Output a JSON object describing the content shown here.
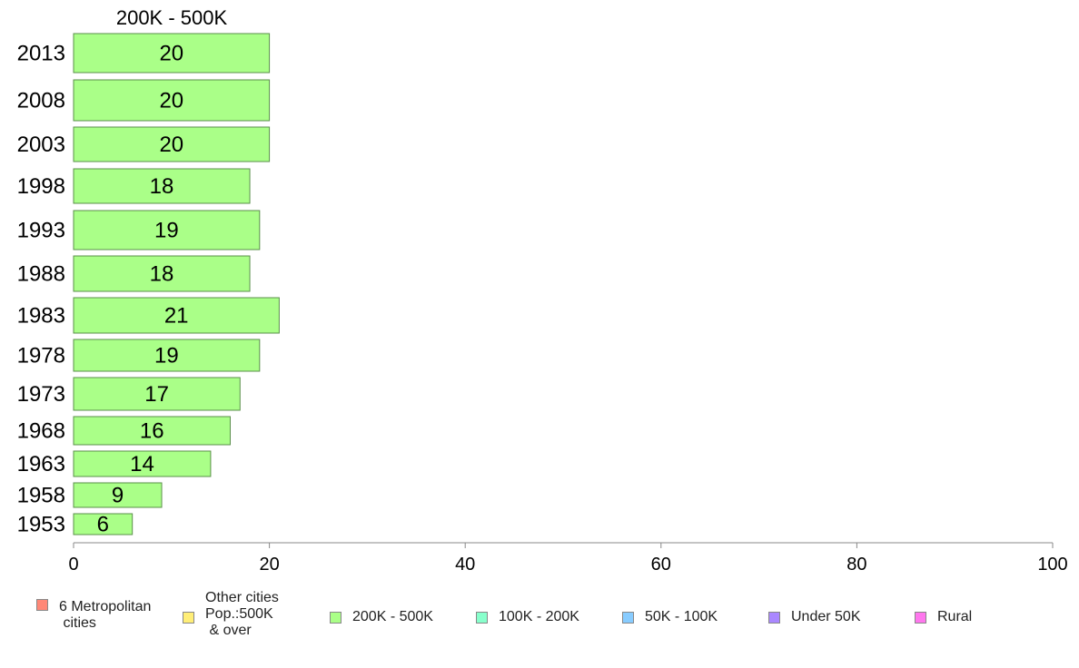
{
  "chart_data": {
    "type": "bar",
    "orientation": "horizontal",
    "title": "200K - 500K",
    "categories": [
      "2013",
      "2008",
      "2003",
      "1998",
      "1993",
      "1988",
      "1983",
      "1978",
      "1973",
      "1968",
      "1963",
      "1958",
      "1953"
    ],
    "values": [
      20,
      20,
      20,
      18,
      19,
      18,
      21,
      19,
      17,
      16,
      14,
      9,
      6
    ],
    "labels": [
      "20",
      "20",
      "20",
      "18",
      "19",
      "18",
      "21",
      "19",
      "17",
      "16",
      "14",
      "9",
      "6"
    ],
    "xlim": [
      0,
      100
    ],
    "xticks": [
      "0",
      "20",
      "40",
      "60",
      "80",
      "100"
    ],
    "bar_color": "#aaff88",
    "grid": false,
    "legend_position": "bottom"
  },
  "legend": [
    {
      "label": "6 Metropolitan\n cities",
      "color": "#ff8877"
    },
    {
      "label": "Other cities\nPop.:500K\n & over",
      "color": "#ffee77"
    },
    {
      "label": "200K - 500K",
      "color": "#aaff88"
    },
    {
      "label": "100K - 200K",
      "color": "#88ffcc"
    },
    {
      "label": "50K - 100K",
      "color": "#88ccff"
    },
    {
      "label": "Under 50K",
      "color": "#aa88ff"
    },
    {
      "label": "Rural",
      "color": "#ff77ee"
    }
  ]
}
